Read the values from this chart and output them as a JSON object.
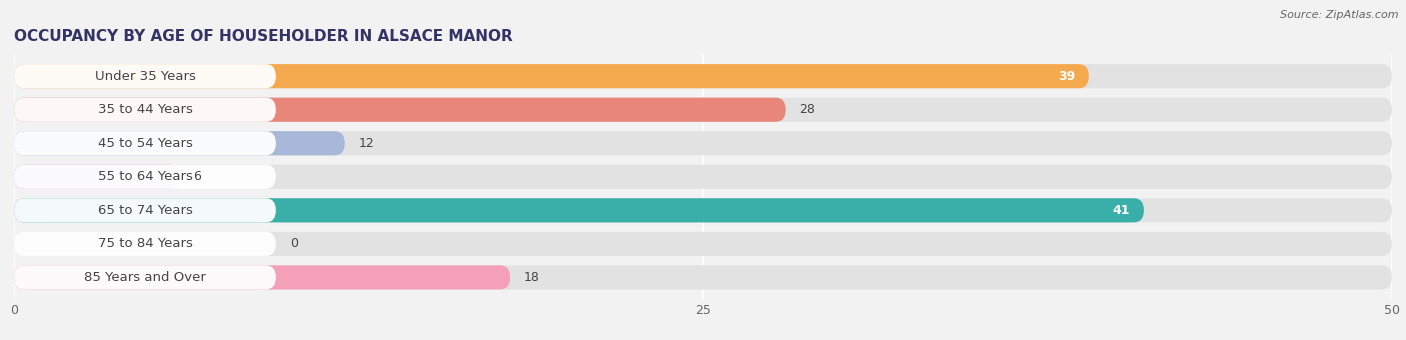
{
  "title": "OCCUPANCY BY AGE OF HOUSEHOLDER IN ALSACE MANOR",
  "source": "Source: ZipAtlas.com",
  "categories": [
    "Under 35 Years",
    "35 to 44 Years",
    "45 to 54 Years",
    "55 to 64 Years",
    "65 to 74 Years",
    "75 to 84 Years",
    "85 Years and Over"
  ],
  "values": [
    39,
    28,
    12,
    6,
    41,
    0,
    18
  ],
  "bar_colors": [
    "#F5A94E",
    "#E8867A",
    "#A8B8D8",
    "#C4A8D0",
    "#3AAFA9",
    "#C0C8E8",
    "#F4A0B8"
  ],
  "xlim": [
    0,
    50
  ],
  "xticks": [
    0,
    25,
    50
  ],
  "background_color": "#f2f2f2",
  "bar_bg_color": "#e2e2e2",
  "label_bg_color": "#ffffff",
  "title_fontsize": 11,
  "label_fontsize": 9.5,
  "value_fontsize": 9
}
